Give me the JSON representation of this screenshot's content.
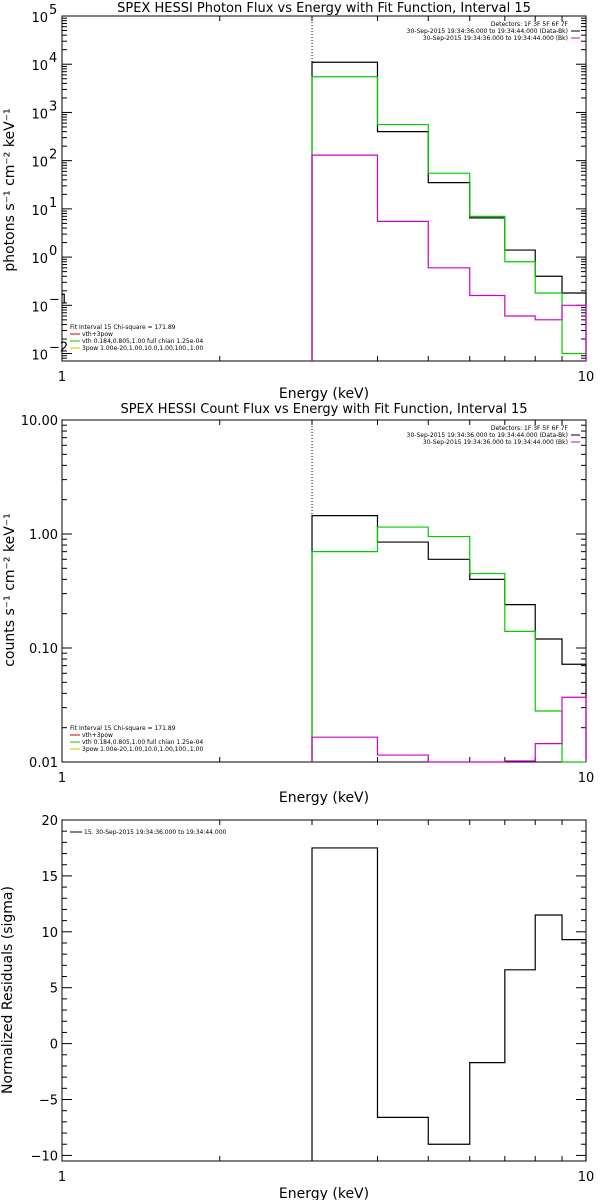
{
  "chart_data": [
    {
      "type": "line",
      "title": "SPEX HESSI Photon Flux vs Energy with Fit Function, Interval 15",
      "xlabel": "Energy (keV)",
      "ylabel": "photons s⁻¹ cm⁻² keV⁻¹",
      "x_scale": "log",
      "y_scale": "log",
      "xlim": [
        1,
        10
      ],
      "ylim": [
        0.007,
        100000
      ],
      "x_ticks": [
        {
          "v": 1,
          "label": "1"
        },
        {
          "v": 10,
          "label": "10"
        }
      ],
      "y_ticks": [
        {
          "v": 0.01,
          "base": "10",
          "exp": "−2"
        },
        {
          "v": 0.1,
          "base": "10",
          "exp": "−1"
        },
        {
          "v": 1,
          "base": "10",
          "exp": "0"
        },
        {
          "v": 10,
          "base": "10",
          "exp": "1"
        },
        {
          "v": 100,
          "base": "10",
          "exp": "2"
        },
        {
          "v": 1000,
          "base": "10",
          "exp": "3"
        },
        {
          "v": 10000,
          "base": "10",
          "exp": "4"
        },
        {
          "v": 100000,
          "base": "10",
          "exp": "5"
        }
      ],
      "vline_x": 3.0,
      "info_lines": [
        "Detectors: 1F 3F 5F 6F 7F",
        "30-Sep-2015 19:34:36.000 to 19:34:44.000 (Data-Bk)",
        "30-Sep-2015 19:34:36.000 to 19:34:44.000 (Bk)"
      ],
      "info_colors": [
        "",
        "#000000",
        "#cc00cc"
      ],
      "legend": [
        {
          "text": "Fit Interval 15   Chi-square = 171.89",
          "color": "#000000"
        },
        {
          "text": "vth+3pow",
          "color": "#cc0000"
        },
        {
          "text": "vth 0.184,0.805,1.00  full chian 1.25e-04",
          "color": "#00cc00"
        },
        {
          "text": "3pow 1.00e-20,1.00,10.0,1.00,100.,1.00",
          "color": "#cccc00"
        }
      ],
      "bin_edges": [
        3.0,
        4.0,
        5.0,
        6.0,
        7.0,
        8.0,
        9.0,
        10.0
      ],
      "series": [
        {
          "color": "#000000",
          "values": [
            11000,
            400,
            35,
            6.5,
            1.4,
            0.4,
            0.18
          ]
        },
        {
          "color": "#00cc00",
          "values": [
            5500,
            560,
            55,
            7.0,
            0.8,
            0.18,
            0.01
          ]
        },
        {
          "color": "#cc00cc",
          "values": [
            130,
            5.5,
            0.6,
            0.16,
            0.06,
            0.05,
            0.1
          ]
        }
      ]
    },
    {
      "type": "line",
      "title": "SPEX HESSI Count Flux vs Energy with Fit Function, Interval 15",
      "xlabel": "Energy (keV)",
      "ylabel": "counts s⁻¹ cm⁻² keV⁻¹",
      "x_scale": "log",
      "y_scale": "log",
      "xlim": [
        1,
        10
      ],
      "ylim": [
        0.01,
        10
      ],
      "x_ticks": [
        {
          "v": 1,
          "label": "1"
        },
        {
          "v": 10,
          "label": "10"
        }
      ],
      "y_ticks": [
        {
          "v": 0.01,
          "label": "0.01"
        },
        {
          "v": 0.1,
          "label": "0.10"
        },
        {
          "v": 1,
          "label": "1.00"
        },
        {
          "v": 10,
          "label": "10.00"
        }
      ],
      "vline_x": 3.0,
      "info_lines": [
        "Detectors: 1F 3F 5F 6F 7F",
        "30-Sep-2015 19:34:36.000 to 19:34:44.000 (Data-Bk)",
        "30-Sep-2015 19:34:36.000 to 19:34:44.000 (Bk)"
      ],
      "info_colors": [
        "",
        "#000000",
        "#cc00cc"
      ],
      "legend": [
        {
          "text": "Fit Interval 15   Chi-square = 171.89",
          "color": "#000000"
        },
        {
          "text": "vth+3pow",
          "color": "#cc0000"
        },
        {
          "text": "vth 0.184,0.805,1.00  full chian 1.25e-04",
          "color": "#00cc00"
        },
        {
          "text": "3pow 1.00e-20,1.00,10.0,1.00,100.,1.00",
          "color": "#cccc00"
        }
      ],
      "bin_edges": [
        3.0,
        4.0,
        5.0,
        6.0,
        7.0,
        8.0,
        9.0,
        10.0
      ],
      "series": [
        {
          "color": "#000000",
          "values": [
            1.45,
            0.85,
            0.6,
            0.4,
            0.24,
            0.12,
            0.072
          ]
        },
        {
          "color": "#00cc00",
          "values": [
            0.7,
            1.15,
            0.95,
            0.45,
            0.14,
            0.028,
            0.01
          ]
        },
        {
          "color": "#cc00cc",
          "values": [
            0.0165,
            0.0115,
            0.01,
            0.0098,
            0.0102,
            0.0145,
            0.037
          ]
        }
      ]
    },
    {
      "type": "line",
      "title": "",
      "xlabel": "Energy (keV)",
      "ylabel": "Normalized Residuals (sigma)",
      "x_scale": "log",
      "y_scale": "linear",
      "xlim": [
        1,
        10
      ],
      "ylim": [
        -10.5,
        20
      ],
      "x_ticks": [
        {
          "v": 1,
          "label": "1"
        },
        {
          "v": 10,
          "label": "10"
        }
      ],
      "y_ticks": [
        {
          "v": -10,
          "label": "−10"
        },
        {
          "v": -5,
          "label": "−5"
        },
        {
          "v": 0,
          "label": "0"
        },
        {
          "v": 5,
          "label": "5"
        },
        {
          "v": 10,
          "label": "10"
        },
        {
          "v": 15,
          "label": "15"
        },
        {
          "v": 20,
          "label": "20"
        }
      ],
      "legend": [
        {
          "text": "15. 30-Sep-2015 19:34:36.000 to 19:34:44.000",
          "color": "#000000"
        }
      ],
      "bin_edges": [
        3.0,
        4.0,
        5.0,
        6.0,
        7.0,
        8.0,
        9.0,
        10.0
      ],
      "series": [
        {
          "color": "#000000",
          "values": [
            17.5,
            -6.6,
            -9.0,
            -1.7,
            6.6,
            11.5,
            9.3
          ]
        }
      ]
    }
  ]
}
